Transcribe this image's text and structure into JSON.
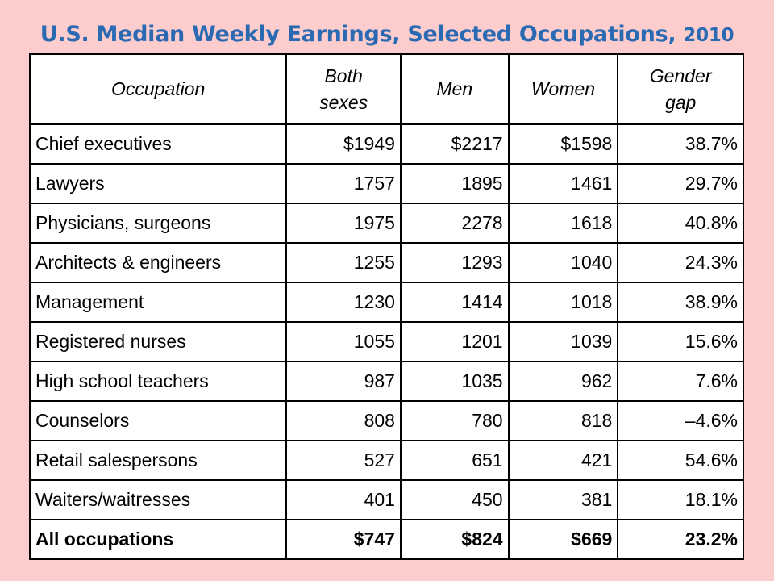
{
  "title": {
    "main": "U.S. Median Weekly Earnings, Selected Occupations,",
    "year": "2010"
  },
  "columns": {
    "occupation": "Occupation",
    "both_line1": "Both",
    "both_line2": "sexes",
    "men": "Men",
    "women": "Women",
    "gap_line1": "Gender",
    "gap_line2": "gap"
  },
  "rows": [
    {
      "occupation": "Chief executives",
      "both": "$1949",
      "men": "$2217",
      "women": "$1598",
      "gap": "38.7%"
    },
    {
      "occupation": "Lawyers",
      "both": "1757",
      "men": "1895",
      "women": "1461",
      "gap": "29.7%"
    },
    {
      "occupation": "Physicians, surgeons",
      "both": "1975",
      "men": "2278",
      "women": "1618",
      "gap": "40.8%"
    },
    {
      "occupation": "Architects & engineers",
      "both": "1255",
      "men": "1293",
      "women": "1040",
      "gap": "24.3%"
    },
    {
      "occupation": "Management",
      "both": "1230",
      "men": "1414",
      "women": "1018",
      "gap": "38.9%"
    },
    {
      "occupation": "Registered nurses",
      "both": "1055",
      "men": "1201",
      "women": "1039",
      "gap": "15.6%"
    },
    {
      "occupation": "High school teachers",
      "both": "987",
      "men": "1035",
      "women": "962",
      "gap": "7.6%"
    },
    {
      "occupation": "Counselors",
      "both": "808",
      "men": "780",
      "women": "818",
      "gap": "–4.6%"
    },
    {
      "occupation": "Retail salespersons",
      "both": "527",
      "men": "651",
      "women": "421",
      "gap": "54.6%"
    },
    {
      "occupation": "Waiters/waitresses",
      "both": "401",
      "men": "450",
      "women": "381",
      "gap": "18.1%"
    }
  ],
  "total": {
    "occupation": "All occupations",
    "both": "$747",
    "men": "$824",
    "women": "$669",
    "gap": "23.2%"
  },
  "colors": {
    "background": "#fdcccc",
    "title": "#2a6ab3",
    "table_bg": "#ffffff",
    "border": "#000000"
  }
}
